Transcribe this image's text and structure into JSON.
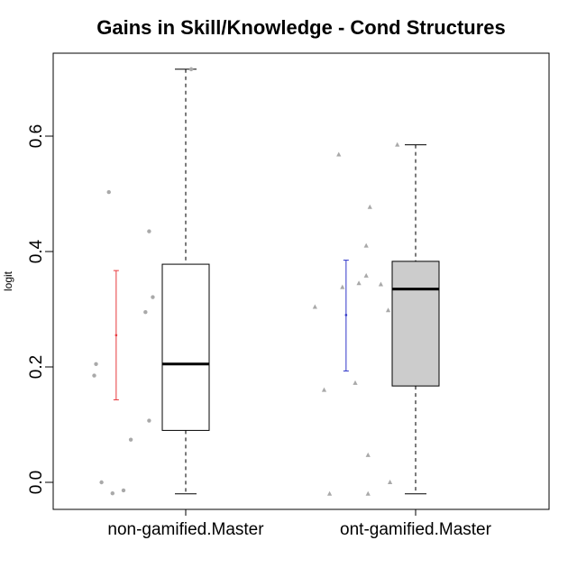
{
  "chart_data": {
    "type": "box",
    "title": "Gains in Skill/Knowledge - Cond Structures",
    "xlabel": "",
    "ylabel": "logit",
    "ylim": [
      -0.05,
      0.75
    ],
    "yticks": [
      "0.0",
      "0.2",
      "0.4",
      "0.6"
    ],
    "grid": false,
    "categories": [
      "non-gamified.Master",
      "ont-gamified.Master"
    ],
    "boxes": [
      {
        "category": "non-gamified.Master",
        "fill": "#ffffff",
        "whisker_low": -0.02,
        "q1": 0.09,
        "median": 0.205,
        "q3": 0.378,
        "whisker_high": 0.716
      },
      {
        "category": "ont-gamified.Master",
        "fill": "#cccccc",
        "whisker_low": -0.02,
        "q1": 0.167,
        "median": 0.335,
        "q3": 0.383,
        "whisker_high": 0.585
      }
    ],
    "mean_ci": [
      {
        "category": "non-gamified.Master",
        "color": "#e8383d",
        "mean": 0.255,
        "low": 0.143,
        "high": 0.367
      },
      {
        "category": "ont-gamified.Master",
        "color": "#2f35c8",
        "mean": 0.29,
        "low": 0.193,
        "high": 0.385
      }
    ],
    "points": [
      {
        "category": "non-gamified.Master",
        "shape": "circle",
        "color": "#a9a9a9",
        "x_jitter": [
          0.03,
          -0.42,
          -0.2,
          -0.18,
          -0.22,
          -0.49,
          -0.5,
          -0.2,
          -0.3,
          -0.34,
          -0.4,
          -0.46
        ],
        "y": [
          0.716,
          0.503,
          0.435,
          0.321,
          0.295,
          0.205,
          0.185,
          0.107,
          0.074,
          -0.014,
          -0.019,
          0.0
        ]
      },
      {
        "category": "ont-gamified.Master",
        "shape": "triangle",
        "color": "#a9a9a9",
        "x_jitter": [
          -0.42,
          -0.1,
          -0.25,
          -0.27,
          -0.27,
          -0.31,
          -0.4,
          -0.55,
          -0.19,
          -0.15,
          -0.33,
          -0.5,
          -0.26,
          -0.47,
          -0.26,
          -0.14
        ],
        "y": [
          0.568,
          0.585,
          0.477,
          0.41,
          0.358,
          0.345,
          0.338,
          0.304,
          0.343,
          0.298,
          0.172,
          0.16,
          0.047,
          -0.02,
          -0.02,
          0.0
        ]
      }
    ]
  }
}
